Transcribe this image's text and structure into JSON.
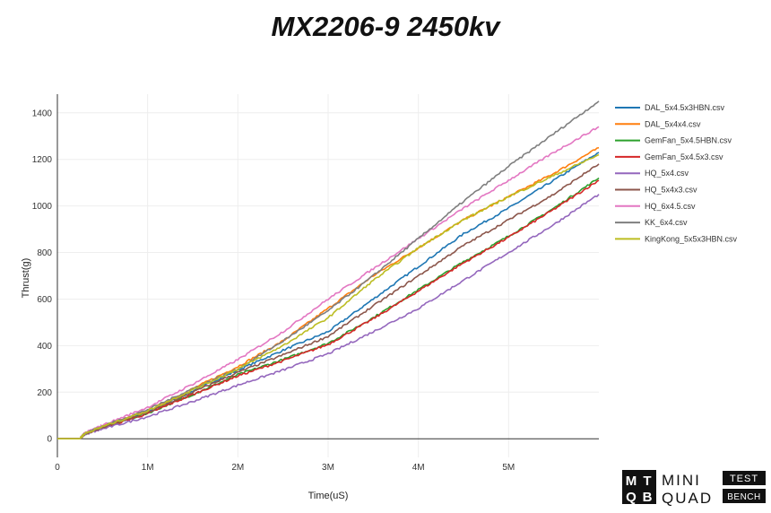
{
  "chart_data": {
    "type": "line",
    "title": "MX2206-9 2450kv",
    "xlabel": "Time(uS)",
    "ylabel": "Thrust(g)",
    "xlim": [
      0,
      6000000
    ],
    "ylim": [
      -80,
      1480
    ],
    "x_ticks": [
      {
        "value": 0,
        "label": "0"
      },
      {
        "value": 1000000,
        "label": "1M"
      },
      {
        "value": 2000000,
        "label": "2M"
      },
      {
        "value": 3000000,
        "label": "3M"
      },
      {
        "value": 4000000,
        "label": "4M"
      },
      {
        "value": 5000000,
        "label": "5M"
      }
    ],
    "y_ticks": [
      {
        "value": 0,
        "label": "0"
      },
      {
        "value": 200,
        "label": "200"
      },
      {
        "value": 400,
        "label": "400"
      },
      {
        "value": 600,
        "label": "600"
      },
      {
        "value": 800,
        "label": "800"
      },
      {
        "value": 1000,
        "label": "1000"
      },
      {
        "value": 1200,
        "label": "1200"
      },
      {
        "value": 1400,
        "label": "1400"
      }
    ],
    "grid": true,
    "legend_position": "right",
    "x": [
      0,
      250000,
      300000,
      500000,
      1000000,
      1500000,
      2000000,
      2500000,
      3000000,
      3500000,
      4000000,
      4500000,
      5000000,
      5500000,
      6000000
    ],
    "series": [
      {
        "name": "DAL_5x4.5x3HBN.csv",
        "color": "#1f77b4",
        "values": [
          0,
          0,
          20,
          48,
          115,
          205,
          295,
          380,
          460,
          600,
          740,
          880,
          990,
          1110,
          1230
        ]
      },
      {
        "name": "DAL_5x4x4.csv",
        "color": "#ff7f0e",
        "values": [
          0,
          0,
          22,
          52,
          120,
          215,
          310,
          420,
          560,
          700,
          820,
          940,
          1040,
          1140,
          1250
        ]
      },
      {
        "name": "GemFan_5x4.5HBN.csv",
        "color": "#2ca02c",
        "values": [
          0,
          0,
          20,
          48,
          110,
          190,
          275,
          340,
          410,
          520,
          640,
          760,
          870,
          990,
          1120
        ]
      },
      {
        "name": "GemFan_5x4.5x3.csv",
        "color": "#d62728",
        "values": [
          0,
          0,
          20,
          47,
          108,
          190,
          270,
          335,
          405,
          515,
          635,
          755,
          865,
          985,
          1110
        ]
      },
      {
        "name": "HQ_5x4.csv",
        "color": "#9467bd",
        "values": [
          0,
          0,
          18,
          42,
          95,
          160,
          230,
          295,
          365,
          460,
          560,
          680,
          800,
          920,
          1050
        ]
      },
      {
        "name": "HQ_5x4x3.csv",
        "color": "#8c564b",
        "values": [
          0,
          0,
          20,
          48,
          112,
          200,
          285,
          360,
          440,
          570,
          700,
          830,
          940,
          1050,
          1180
        ]
      },
      {
        "name": "HQ_6x4.5.csv",
        "color": "#e377c2",
        "values": [
          0,
          0,
          24,
          58,
          135,
          235,
          340,
          460,
          600,
          730,
          860,
          990,
          1110,
          1230,
          1340
        ]
      },
      {
        "name": "KK_6x4.csv",
        "color": "#7f7f7f",
        "values": [
          0,
          0,
          23,
          54,
          125,
          215,
          300,
          420,
          550,
          700,
          860,
          1020,
          1170,
          1310,
          1450
        ]
      },
      {
        "name": "KingKong_5x5x3HBN.csv",
        "color": "#bcbd22",
        "values": [
          0,
          0,
          22,
          52,
          120,
          210,
          300,
          400,
          520,
          680,
          820,
          940,
          1040,
          1130,
          1220
        ]
      }
    ]
  },
  "logo": {
    "left_letters": "MTQB",
    "line1": "MINI",
    "line2": "QUAD",
    "box1": "TEST",
    "box2": "BENCH"
  }
}
